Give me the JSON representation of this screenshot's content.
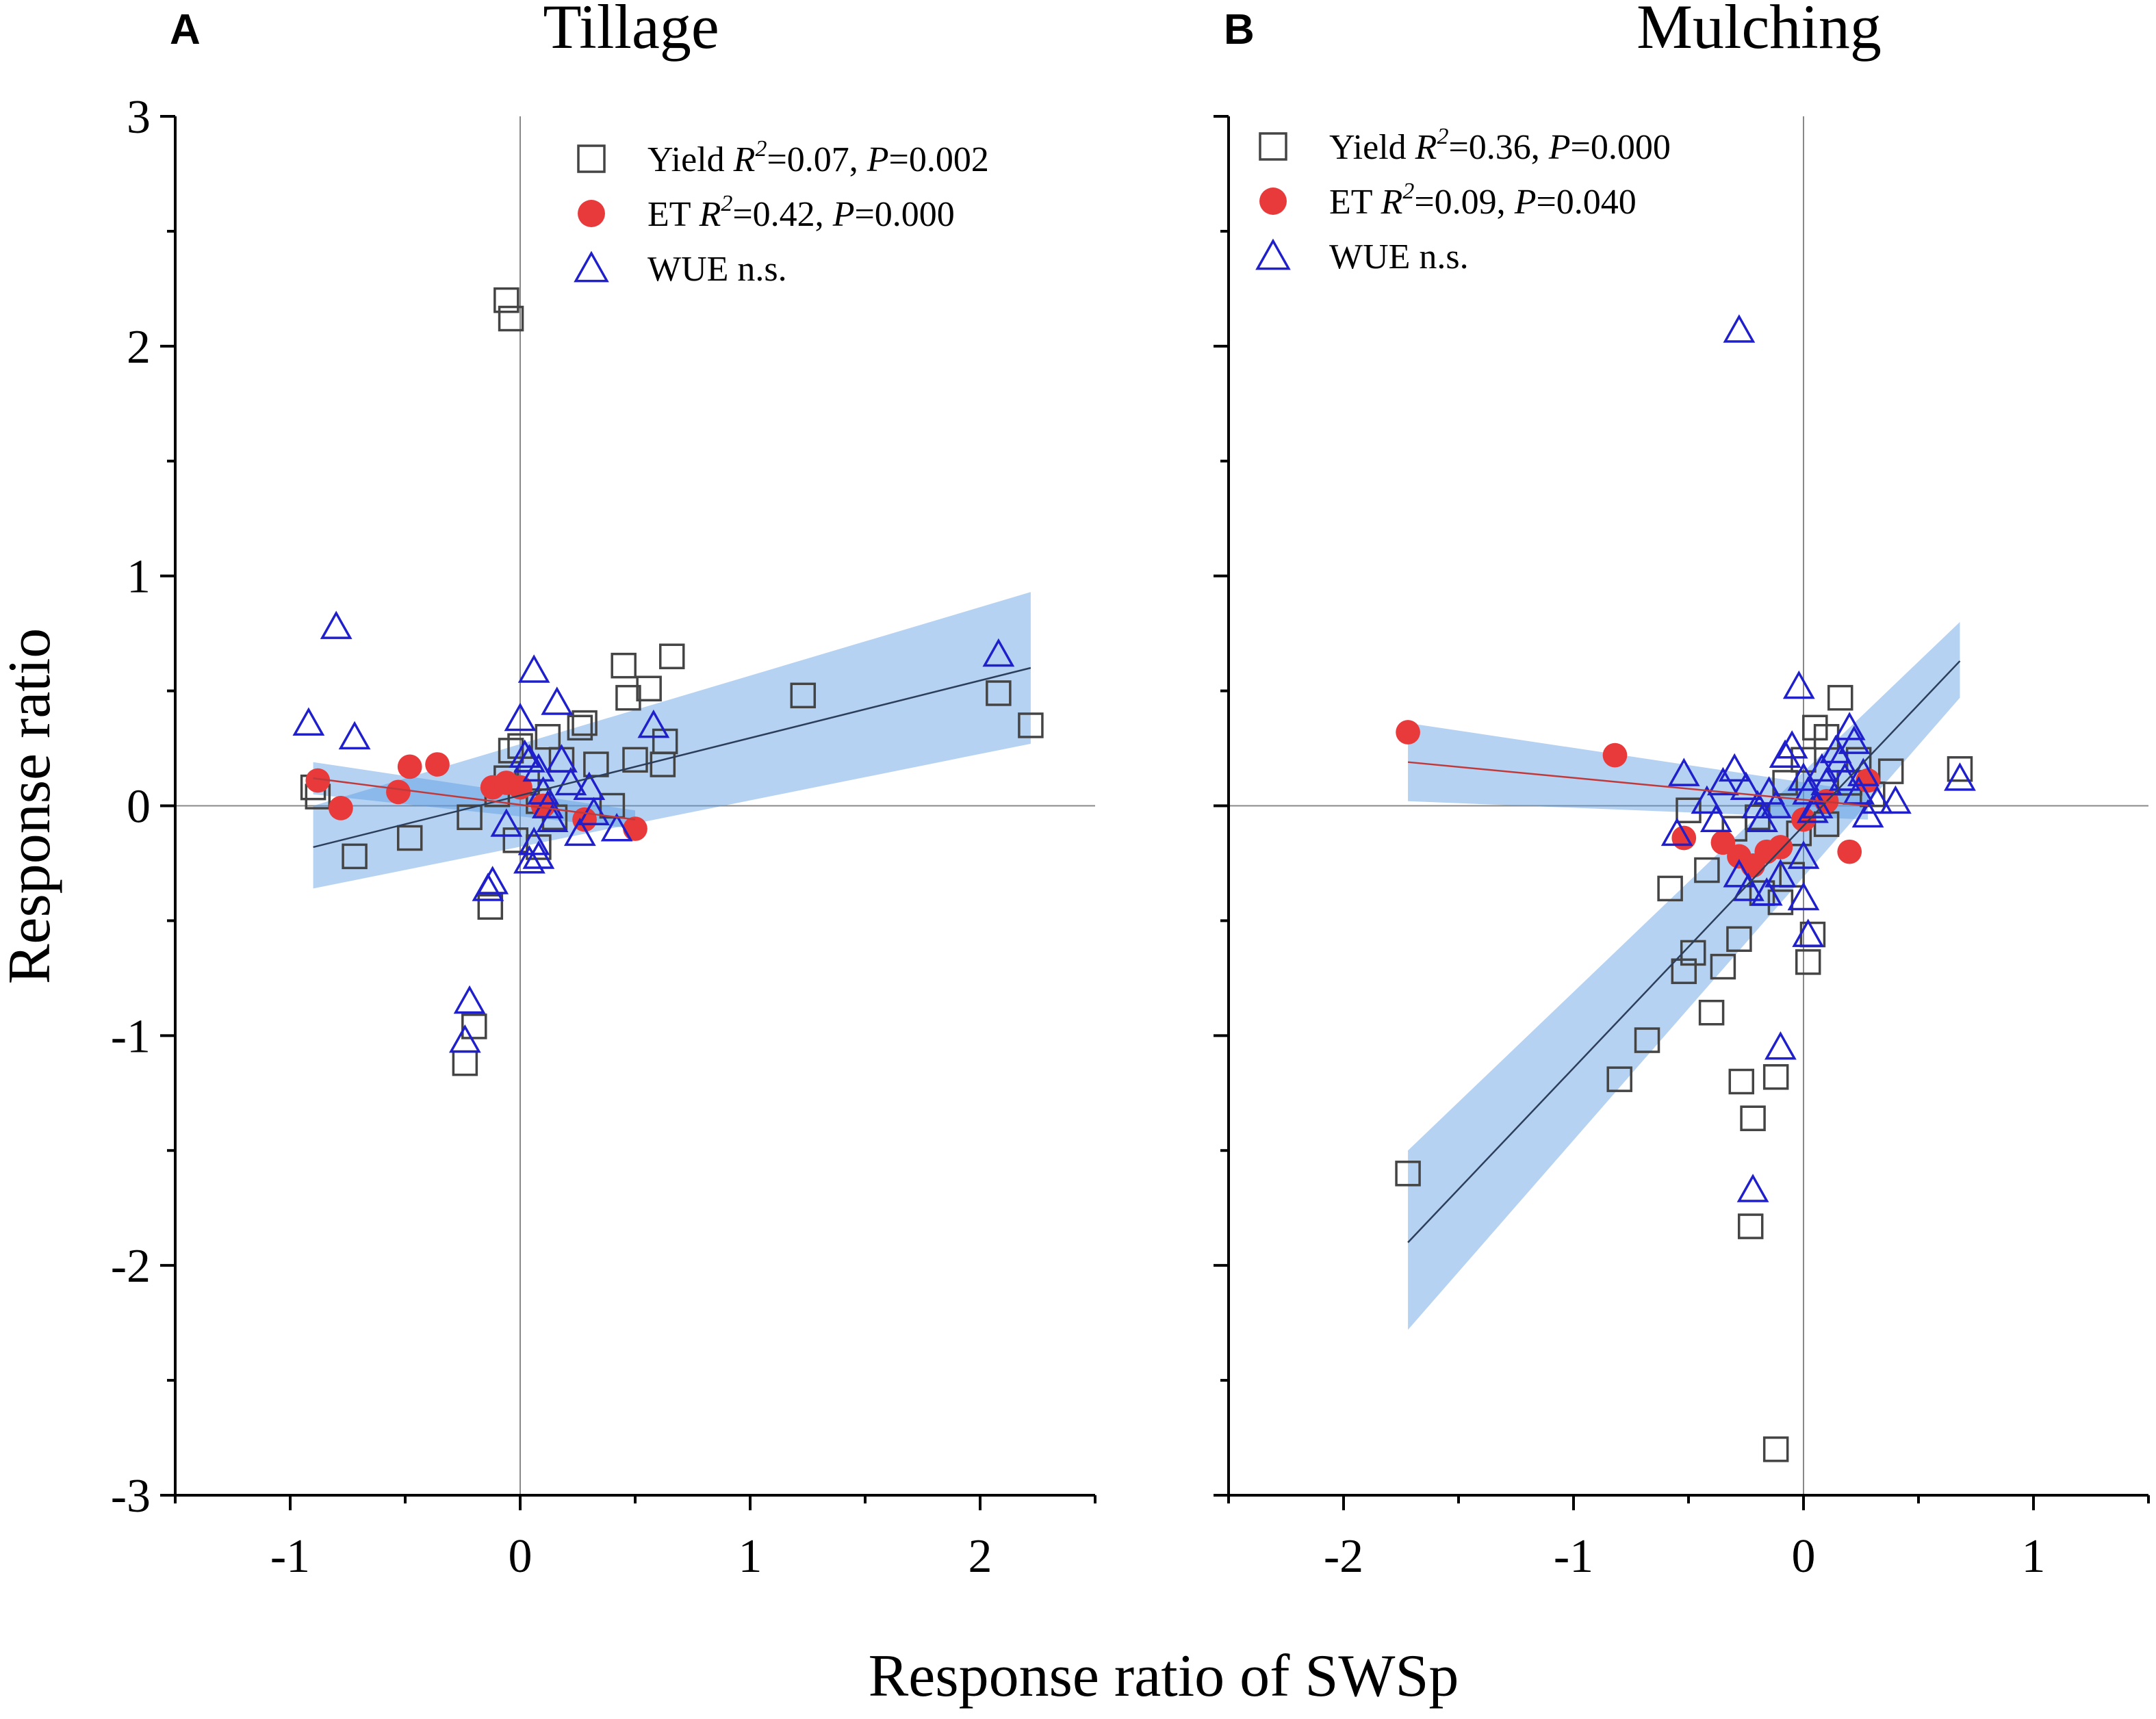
{
  "figure": {
    "y_axis_label": "Response ratio",
    "x_axis_label": "Response ratio of SWSp"
  },
  "chart_data": [
    {
      "type": "scatter",
      "panel_letter": "A",
      "title": "Tillage",
      "xlabel": "Response ratio of SWSp",
      "ylabel": "Response ratio",
      "xlim": [
        -1.5,
        2.5
      ],
      "ylim": [
        -3,
        3
      ],
      "x_ticks": [
        -1,
        0,
        1,
        2
      ],
      "x_tick_labels": [
        "-1",
        "0",
        "1",
        "2"
      ],
      "y_ticks": [
        -3,
        -2,
        -1,
        0,
        1,
        2,
        3
      ],
      "y_tick_labels": [
        "-3",
        "-2",
        "-1",
        "0",
        "1",
        "2",
        "3"
      ],
      "reference_lines": {
        "x": 0,
        "y": 0
      },
      "legend_position": "top-right",
      "legend": [
        {
          "series": "Yield",
          "name": "Yield",
          "r2": "0.07",
          "p": "0.002",
          "significant": true
        },
        {
          "series": "ET",
          "name": "ET",
          "r2": "0.42",
          "p": "0.000",
          "significant": true
        },
        {
          "series": "WUE",
          "name": "WUE",
          "ns": "n.s.",
          "significant": false
        }
      ],
      "series": [
        {
          "name": "Yield",
          "marker": "square",
          "color": "#444444",
          "fill": "none",
          "points": [
            [
              -0.9,
              0.08
            ],
            [
              -0.88,
              0.04
            ],
            [
              -0.72,
              -0.22
            ],
            [
              -0.48,
              -0.14
            ],
            [
              -0.06,
              2.2
            ],
            [
              -0.04,
              2.12
            ],
            [
              -0.24,
              -1.12
            ],
            [
              -0.2,
              -0.96
            ],
            [
              -0.13,
              -0.44
            ],
            [
              -0.22,
              -0.05
            ],
            [
              -0.1,
              0.05
            ],
            [
              -0.06,
              0.12
            ],
            [
              -0.04,
              0.24
            ],
            [
              0.0,
              0.26
            ],
            [
              0.03,
              0.1
            ],
            [
              0.08,
              0.02
            ],
            [
              0.12,
              0.3
            ],
            [
              0.18,
              0.2
            ],
            [
              0.26,
              0.34
            ],
            [
              0.28,
              0.36
            ],
            [
              0.33,
              0.18
            ],
            [
              0.45,
              0.61
            ],
            [
              0.47,
              0.47
            ],
            [
              0.5,
              0.2
            ],
            [
              0.56,
              0.51
            ],
            [
              0.62,
              0.18
            ],
            [
              0.63,
              0.28
            ],
            [
              0.66,
              0.65
            ],
            [
              0.4,
              0.0
            ],
            [
              0.15,
              -0.05
            ],
            [
              -0.02,
              -0.15
            ],
            [
              0.08,
              -0.18
            ],
            [
              1.23,
              0.48
            ],
            [
              2.08,
              0.49
            ],
            [
              2.22,
              0.35
            ]
          ]
        },
        {
          "name": "ET",
          "marker": "circle",
          "color": "#e8393b",
          "fill": "#e8393b",
          "points": [
            [
              -0.88,
              0.11
            ],
            [
              -0.78,
              -0.01
            ],
            [
              -0.53,
              0.06
            ],
            [
              -0.48,
              0.17
            ],
            [
              -0.36,
              0.18
            ],
            [
              -0.12,
              0.08
            ],
            [
              -0.06,
              0.1
            ],
            [
              0.0,
              0.08
            ],
            [
              0.1,
              0.0
            ],
            [
              0.28,
              -0.06
            ],
            [
              0.5,
              -0.1
            ]
          ]
        },
        {
          "name": "WUE",
          "marker": "triangle",
          "color": "#1f1fcc",
          "fill": "none",
          "points": [
            [
              -0.92,
              0.36
            ],
            [
              -0.8,
              0.78
            ],
            [
              -0.72,
              0.3
            ],
            [
              -0.22,
              -0.85
            ],
            [
              -0.24,
              -1.02
            ],
            [
              -0.14,
              -0.36
            ],
            [
              -0.12,
              -0.33
            ],
            [
              0.0,
              0.38
            ],
            [
              0.02,
              0.22
            ],
            [
              0.04,
              0.2
            ],
            [
              0.06,
              0.59
            ],
            [
              0.08,
              0.16
            ],
            [
              0.1,
              0.06
            ],
            [
              0.06,
              -0.16
            ],
            [
              0.04,
              -0.24
            ],
            [
              0.08,
              -0.22
            ],
            [
              0.12,
              0.0
            ],
            [
              0.16,
              0.45
            ],
            [
              0.18,
              0.2
            ],
            [
              0.22,
              0.1
            ],
            [
              0.26,
              -0.12
            ],
            [
              0.3,
              0.08
            ],
            [
              0.32,
              -0.03
            ],
            [
              0.42,
              -0.1
            ],
            [
              0.58,
              0.35
            ],
            [
              -0.06,
              -0.08
            ],
            [
              0.14,
              -0.06
            ],
            [
              2.08,
              0.66
            ]
          ]
        }
      ],
      "fits": [
        {
          "series": "Yield",
          "x_range": [
            -0.9,
            2.22
          ],
          "y_range": [
            -0.18,
            0.6
          ],
          "ci_low": [
            -0.36,
            0.27
          ],
          "ci_high": [
            0.0,
            0.93
          ],
          "color": "#2c3e5a"
        },
        {
          "series": "ET",
          "x_range": [
            -0.9,
            0.5
          ],
          "y_range": [
            0.12,
            -0.06
          ],
          "ci_low": [
            0.05,
            -0.1
          ],
          "ci_high": [
            0.19,
            -0.02
          ],
          "color": "#c0393b"
        }
      ]
    },
    {
      "type": "scatter",
      "panel_letter": "B",
      "title": "Mulching",
      "xlabel": "Response ratio of SWSp",
      "ylabel": "Response ratio",
      "xlim": [
        -2.5,
        1.5
      ],
      "ylim": [
        -3,
        3
      ],
      "x_ticks": [
        -2,
        -1,
        0,
        1
      ],
      "x_tick_labels": [
        "-2",
        "-1",
        "0",
        "1"
      ],
      "y_ticks": [
        -3,
        -2,
        -1,
        0,
        1,
        2,
        3
      ],
      "y_tick_labels": [
        "",
        "",
        "",
        "",
        "",
        "",
        ""
      ],
      "reference_lines": {
        "x": 0,
        "y": 0
      },
      "legend_position": "top-left",
      "legend": [
        {
          "series": "Yield",
          "name": "Yield",
          "r2": "0.36",
          "p": "0.000",
          "significant": true
        },
        {
          "series": "ET",
          "name": "ET",
          "r2": "0.09",
          "p": "0.040",
          "significant": true
        },
        {
          "series": "WUE",
          "name": "WUE",
          "ns": "n.s.",
          "significant": false
        }
      ],
      "series": [
        {
          "name": "Yield",
          "marker": "square",
          "color": "#444444",
          "fill": "none",
          "points": [
            [
              -1.72,
              -1.6
            ],
            [
              -0.8,
              -1.19
            ],
            [
              -0.68,
              -1.02
            ],
            [
              -0.52,
              -0.72
            ],
            [
              -0.48,
              -0.64
            ],
            [
              -0.4,
              -0.9
            ],
            [
              -0.35,
              -0.7
            ],
            [
              -0.28,
              -0.58
            ],
            [
              -0.27,
              -1.2
            ],
            [
              -0.22,
              -1.36
            ],
            [
              -0.23,
              -1.83
            ],
            [
              -0.18,
              -0.38
            ],
            [
              -0.12,
              -1.18
            ],
            [
              -0.12,
              -2.8
            ],
            [
              -0.1,
              -0.42
            ],
            [
              -0.05,
              -0.3
            ],
            [
              0.02,
              -0.68
            ],
            [
              0.04,
              -0.56
            ],
            [
              -0.58,
              -0.36
            ],
            [
              -0.5,
              -0.02
            ],
            [
              -0.42,
              -0.28
            ],
            [
              -0.3,
              -0.1
            ],
            [
              -0.2,
              -0.05
            ],
            [
              -0.08,
              0.1
            ],
            [
              0.0,
              0.2
            ],
            [
              0.05,
              0.34
            ],
            [
              0.1,
              0.3
            ],
            [
              0.16,
              0.47
            ],
            [
              0.2,
              0.1
            ],
            [
              0.24,
              0.2
            ],
            [
              0.3,
              0.05
            ],
            [
              0.38,
              0.15
            ],
            [
              0.1,
              -0.08
            ],
            [
              -0.02,
              -0.12
            ],
            [
              0.68,
              0.16
            ]
          ]
        },
        {
          "name": "ET",
          "marker": "circle",
          "color": "#e8393b",
          "fill": "#e8393b",
          "points": [
            [
              -1.72,
              0.32
            ],
            [
              -0.82,
              0.22
            ],
            [
              -0.52,
              -0.14
            ],
            [
              -0.35,
              -0.16
            ],
            [
              -0.28,
              -0.22
            ],
            [
              -0.22,
              -0.26
            ],
            [
              -0.16,
              -0.2
            ],
            [
              -0.1,
              -0.18
            ],
            [
              0.0,
              -0.06
            ],
            [
              0.1,
              0.02
            ],
            [
              0.2,
              -0.2
            ],
            [
              0.28,
              0.11
            ]
          ]
        },
        {
          "name": "WUE",
          "marker": "triangle",
          "color": "#1f1fcc",
          "fill": "none",
          "points": [
            [
              -0.28,
              2.07
            ],
            [
              -0.52,
              0.14
            ],
            [
              -0.55,
              -0.12
            ],
            [
              -0.42,
              0.02
            ],
            [
              -0.38,
              -0.06
            ],
            [
              -0.35,
              0.1
            ],
            [
              -0.3,
              0.16
            ],
            [
              -0.25,
              0.08
            ],
            [
              -0.2,
              0.0
            ],
            [
              -0.18,
              -0.06
            ],
            [
              -0.15,
              0.06
            ],
            [
              -0.12,
              0.0
            ],
            [
              -0.08,
              0.22
            ],
            [
              -0.05,
              0.26
            ],
            [
              -0.02,
              0.52
            ],
            [
              0.0,
              0.12
            ],
            [
              0.02,
              0.06
            ],
            [
              0.04,
              -0.02
            ],
            [
              0.06,
              0.0
            ],
            [
              0.08,
              0.16
            ],
            [
              0.1,
              0.1
            ],
            [
              0.14,
              0.24
            ],
            [
              0.16,
              0.2
            ],
            [
              0.18,
              0.12
            ],
            [
              0.2,
              0.34
            ],
            [
              0.22,
              0.28
            ],
            [
              0.24,
              0.06
            ],
            [
              0.26,
              0.14
            ],
            [
              0.28,
              -0.04
            ],
            [
              0.32,
              0.02
            ],
            [
              0.4,
              0.02
            ],
            [
              -0.28,
              -0.3
            ],
            [
              -0.24,
              -0.36
            ],
            [
              -0.16,
              -0.38
            ],
            [
              -0.1,
              -0.3
            ],
            [
              0.0,
              -0.22
            ],
            [
              0.0,
              -0.4
            ],
            [
              0.02,
              -0.56
            ],
            [
              -0.1,
              -1.05
            ],
            [
              -0.22,
              -1.67
            ],
            [
              0.68,
              0.12
            ]
          ]
        }
      ],
      "fits": [
        {
          "series": "Yield",
          "x_range": [
            -1.72,
            0.68
          ],
          "y_range": [
            -1.9,
            0.63
          ],
          "ci_low": [
            -2.28,
            0.47
          ],
          "ci_high": [
            -1.5,
            0.8
          ],
          "color": "#2c3e5a"
        },
        {
          "series": "ET",
          "x_range": [
            -1.72,
            0.28
          ],
          "y_range": [
            0.19,
            0.0
          ],
          "ci_low": [
            0.02,
            -0.06
          ],
          "ci_high": [
            0.36,
            0.06
          ],
          "color": "#c0393b"
        }
      ]
    }
  ]
}
